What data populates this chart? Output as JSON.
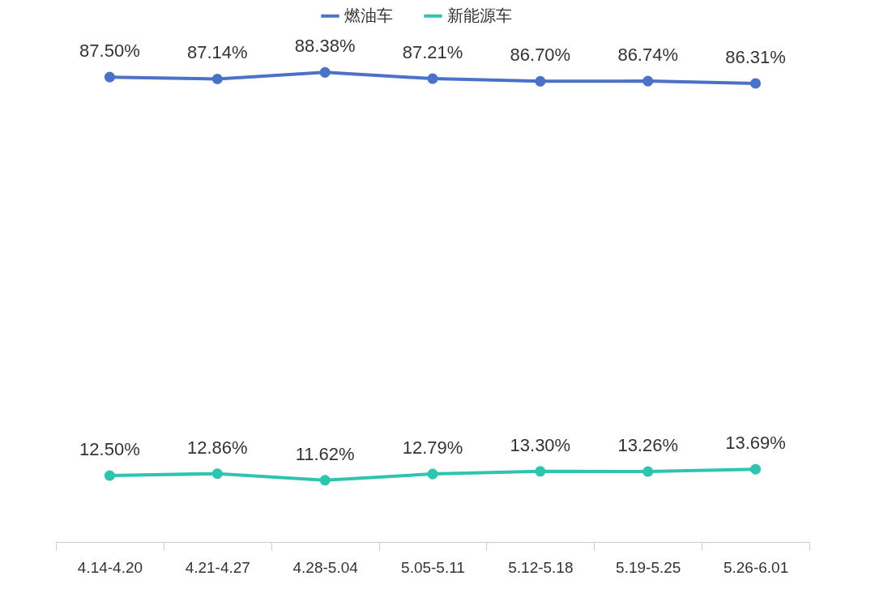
{
  "chart_data": {
    "type": "line",
    "categories": [
      "4.14-4.20",
      "4.21-4.27",
      "4.28-5.04",
      "5.05-5.11",
      "5.12-5.18",
      "5.19-5.25",
      "5.26-6.01"
    ],
    "series": [
      {
        "name": "燃油车",
        "color": "#4a72c8",
        "values": [
          87.5,
          87.14,
          88.38,
          87.21,
          86.7,
          86.74,
          86.31
        ],
        "value_labels": [
          "87.50%",
          "87.14%",
          "88.38%",
          "87.21%",
          "86.70%",
          "86.74%",
          "86.31%"
        ]
      },
      {
        "name": "新能源车",
        "color": "#2ec4b0",
        "values": [
          12.5,
          12.86,
          11.62,
          12.79,
          13.3,
          13.26,
          13.69
        ],
        "value_labels": [
          "12.50%",
          "12.86%",
          "11.62%",
          "12.79%",
          "13.30%",
          "13.26%",
          "13.69%"
        ]
      }
    ],
    "legend": "top",
    "marker": "circle",
    "grid": false,
    "line_style": "solid"
  }
}
